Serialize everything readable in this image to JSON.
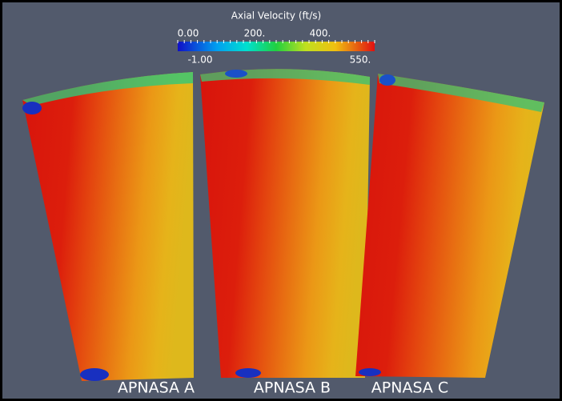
{
  "colorbar": {
    "title": "Axial Velocity (ft/s)",
    "ticks": [
      "0.00",
      "200.",
      "400."
    ],
    "min_label": "-1.00",
    "max_label": "550."
  },
  "panels": [
    {
      "label": "APNASA A"
    },
    {
      "label": "APNASA B"
    },
    {
      "label": "APNASA C"
    }
  ]
}
